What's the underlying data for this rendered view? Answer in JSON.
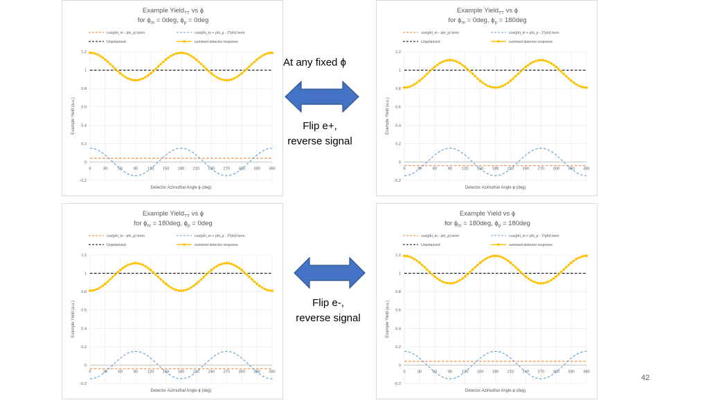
{
  "annotations": {
    "fixed_phi": "At any fixed ϕ",
    "flip_eplus_line1": "Flip e+,",
    "flip_eplus_line2": "reverse signal",
    "flip_eminus_line1": "Flip e-,",
    "flip_eminus_line2": "reverse signal"
  },
  "page_number": "42",
  "colors": {
    "term1": "#ed7d31",
    "term2": "#5b9bd5",
    "unpolarized": "#000000",
    "summed": "#ffc000",
    "arrow_fill": "#4472c4",
    "arrow_stroke": "#2f528f"
  },
  "chart_data": [
    {
      "type": "line",
      "title": "Example Yield",
      "title_sub": "TT",
      "title_suffix": " vs ϕ",
      "subtitle_parts": [
        "for ϕ",
        "m",
        " = 0deg, ϕ",
        "p",
        " = 0deg"
      ],
      "xlabel": "Detector Azimuthal Angle ϕ (deg)",
      "ylabel": "Example Yield (a.u.)",
      "xlim": [
        0,
        360
      ],
      "ylim": [
        -0.2,
        1.2
      ],
      "xticks": [
        0,
        30,
        60,
        90,
        120,
        150,
        180,
        210,
        240,
        270,
        300,
        330,
        360
      ],
      "yticks": [
        -0.2,
        0,
        0.2,
        0.4,
        0.6,
        0.8,
        1,
        1.2
      ],
      "grid": true,
      "legend_position": "top",
      "x": [
        0,
        30,
        60,
        90,
        120,
        150,
        180,
        210,
        240,
        270,
        300,
        330,
        360
      ],
      "series": [
        {
          "name": "cos(phi_m - phi_p) term",
          "style": "dashed",
          "color": "term1",
          "values": [
            0.04,
            0.04,
            0.04,
            0.04,
            0.04,
            0.04,
            0.04,
            0.04,
            0.04,
            0.04,
            0.04,
            0.04,
            0.04
          ]
        },
        {
          "name": "cos(phi_m + phi_p - 2*phi) term",
          "style": "dashed",
          "color": "term2",
          "values": [
            0.15,
            0.075,
            -0.075,
            -0.15,
            -0.075,
            0.075,
            0.15,
            0.075,
            -0.075,
            -0.15,
            -0.075,
            0.075,
            0.15
          ]
        },
        {
          "name": "Unpolarized",
          "style": "dashed",
          "color": "unpolarized",
          "values": [
            1,
            1,
            1,
            1,
            1,
            1,
            1,
            1,
            1,
            1,
            1,
            1,
            1
          ]
        },
        {
          "name": "summed detector response",
          "style": "solid-markers",
          "color": "summed",
          "values": [
            1.19,
            1.115,
            0.965,
            0.89,
            0.965,
            1.115,
            1.19,
            1.115,
            0.965,
            0.89,
            0.965,
            1.115,
            1.19
          ]
        }
      ]
    },
    {
      "type": "line",
      "title": "Example Yield",
      "title_sub": "TT",
      "title_suffix": " vs ϕ",
      "subtitle_parts": [
        "for ϕ",
        "m",
        " = 0deg, ϕ",
        "p",
        " = 180deg"
      ],
      "xlabel": "Detector Azimuthal Angle ϕ (deg)",
      "ylabel": "Example Yield (a.u.)",
      "xlim": [
        0,
        360
      ],
      "ylim": [
        -0.2,
        1.2
      ],
      "xticks": [
        0,
        30,
        60,
        90,
        120,
        150,
        180,
        210,
        240,
        270,
        300,
        330,
        360
      ],
      "yticks": [
        -0.2,
        0,
        0.2,
        0.4,
        0.6,
        0.8,
        1,
        1.2
      ],
      "grid": true,
      "legend_position": "top",
      "x": [
        0,
        30,
        60,
        90,
        120,
        150,
        180,
        210,
        240,
        270,
        300,
        330,
        360
      ],
      "series": [
        {
          "name": "cos(phi_m - phi_p) term",
          "style": "dashed",
          "color": "term1",
          "values": [
            -0.04,
            -0.04,
            -0.04,
            -0.04,
            -0.04,
            -0.04,
            -0.04,
            -0.04,
            -0.04,
            -0.04,
            -0.04,
            -0.04,
            -0.04
          ]
        },
        {
          "name": "cos(phi_m + phi_p - 2*phi) term",
          "style": "dashed",
          "color": "term2",
          "values": [
            -0.15,
            -0.075,
            0.075,
            0.15,
            0.075,
            -0.075,
            -0.15,
            -0.075,
            0.075,
            0.15,
            0.075,
            -0.075,
            -0.15
          ]
        },
        {
          "name": "Unpolarized",
          "style": "dashed",
          "color": "unpolarized",
          "values": [
            1,
            1,
            1,
            1,
            1,
            1,
            1,
            1,
            1,
            1,
            1,
            1,
            1
          ]
        },
        {
          "name": "summed detector response",
          "style": "solid-markers",
          "color": "summed",
          "values": [
            0.81,
            0.885,
            1.035,
            1.11,
            1.035,
            0.885,
            0.81,
            0.885,
            1.035,
            1.11,
            1.035,
            0.885,
            0.81
          ]
        }
      ]
    },
    {
      "type": "line",
      "title": "Example Yield",
      "title_sub": "TT",
      "title_suffix": " vs ϕ",
      "subtitle_parts": [
        "for ϕ",
        "m",
        " = 180deg, ϕ",
        "p",
        " = 0deg"
      ],
      "xlabel": "Detector Azimuthal Angle ϕ (deg)",
      "ylabel": "Example Yield (a.u.)",
      "xlim": [
        0,
        360
      ],
      "ylim": [
        -0.2,
        1.2
      ],
      "xticks": [
        0,
        30,
        60,
        90,
        120,
        150,
        180,
        210,
        240,
        270,
        300,
        330,
        360
      ],
      "yticks": [
        -0.2,
        0,
        0.2,
        0.4,
        0.6,
        0.8,
        1,
        1.2
      ],
      "grid": true,
      "legend_position": "top",
      "x": [
        0,
        30,
        60,
        90,
        120,
        150,
        180,
        210,
        240,
        270,
        300,
        330,
        360
      ],
      "series": [
        {
          "name": "cos(phi_m - phi_p) term",
          "style": "dashed",
          "color": "term1",
          "values": [
            -0.04,
            -0.04,
            -0.04,
            -0.04,
            -0.04,
            -0.04,
            -0.04,
            -0.04,
            -0.04,
            -0.04,
            -0.04,
            -0.04,
            -0.04
          ]
        },
        {
          "name": "cos(phi_m + phi_p - 2*phi) term",
          "style": "dashed",
          "color": "term2",
          "values": [
            -0.15,
            -0.075,
            0.075,
            0.15,
            0.075,
            -0.075,
            -0.15,
            -0.075,
            0.075,
            0.15,
            0.075,
            -0.075,
            -0.15
          ]
        },
        {
          "name": "Unpolarized",
          "style": "dashed",
          "color": "unpolarized",
          "values": [
            1,
            1,
            1,
            1,
            1,
            1,
            1,
            1,
            1,
            1,
            1,
            1,
            1
          ]
        },
        {
          "name": "summed detector response",
          "style": "solid-markers",
          "color": "summed",
          "values": [
            0.81,
            0.885,
            1.035,
            1.11,
            1.035,
            0.885,
            0.81,
            0.885,
            1.035,
            1.11,
            1.035,
            0.885,
            0.81
          ]
        }
      ]
    },
    {
      "type": "line",
      "title": "Example Yield",
      "title_sub": "",
      "title_suffix": " vs ϕ",
      "subtitle_parts": [
        "for ϕ",
        "m",
        " = 180deg, ϕ",
        "p",
        " = 180deg"
      ],
      "xlabel": "Detector Azimuthal Angle ϕ (deg)",
      "ylabel": "Example Yield (a.u.)",
      "xlim": [
        0,
        360
      ],
      "ylim": [
        -0.2,
        1.2
      ],
      "xticks": [
        0,
        30,
        60,
        90,
        120,
        150,
        180,
        210,
        240,
        270,
        300,
        330,
        360
      ],
      "yticks": [
        -0.2,
        0,
        0.2,
        0.4,
        0.6,
        0.8,
        1,
        1.2
      ],
      "grid": true,
      "legend_position": "top",
      "x": [
        0,
        30,
        60,
        90,
        120,
        150,
        180,
        210,
        240,
        270,
        300,
        330,
        360
      ],
      "series": [
        {
          "name": "cos(phi_m - phi_p) term",
          "style": "dashed",
          "color": "term1",
          "values": [
            0.04,
            0.04,
            0.04,
            0.04,
            0.04,
            0.04,
            0.04,
            0.04,
            0.04,
            0.04,
            0.04,
            0.04,
            0.04
          ]
        },
        {
          "name": "cos(phi_m + phi_p - 2*phi) term",
          "style": "dashed",
          "color": "term2",
          "values": [
            0.15,
            0.075,
            -0.075,
            -0.15,
            -0.075,
            0.075,
            0.15,
            0.075,
            -0.075,
            -0.15,
            -0.075,
            0.075,
            0.15
          ]
        },
        {
          "name": "Unpolarized",
          "style": "dashed",
          "color": "unpolarized",
          "values": [
            1,
            1,
            1,
            1,
            1,
            1,
            1,
            1,
            1,
            1,
            1,
            1,
            1
          ]
        },
        {
          "name": "summed detector response",
          "style": "solid-markers",
          "color": "summed",
          "values": [
            1.19,
            1.115,
            0.965,
            0.89,
            0.965,
            1.115,
            1.19,
            1.115,
            0.965,
            0.89,
            0.965,
            1.115,
            1.19
          ]
        }
      ]
    }
  ]
}
